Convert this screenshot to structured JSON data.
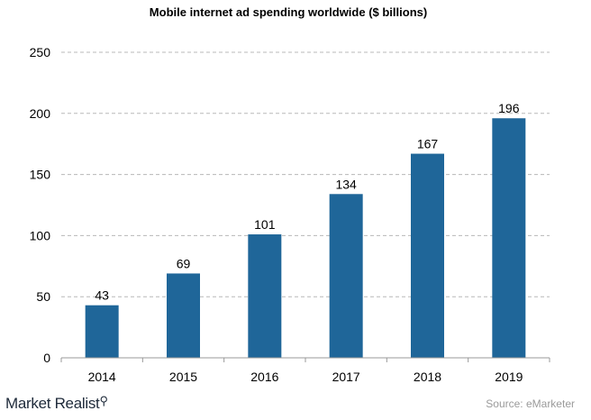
{
  "chart_data": {
    "type": "bar",
    "title": "Mobile internet ad spending worldwide ($ billions)",
    "categories": [
      "2014",
      "2015",
      "2016",
      "2017",
      "2018",
      "2019"
    ],
    "values": [
      43,
      69,
      101,
      134,
      167,
      196
    ],
    "data_labels": [
      "43",
      "69",
      "101",
      "134",
      "167",
      "196"
    ],
    "xlabel": "",
    "ylabel": "",
    "ylim": [
      0,
      250
    ],
    "yticks": [
      0,
      50,
      100,
      150,
      200,
      250
    ],
    "ytick_labels": [
      "0",
      "50",
      "100",
      "150",
      "200",
      "250"
    ],
    "grid": "horizontal dashed",
    "bar_color": "#1f6699"
  },
  "footer": {
    "brand": "Market Realist",
    "brand_icon": "magnifier-icon",
    "source": "Source: eMarketer"
  }
}
